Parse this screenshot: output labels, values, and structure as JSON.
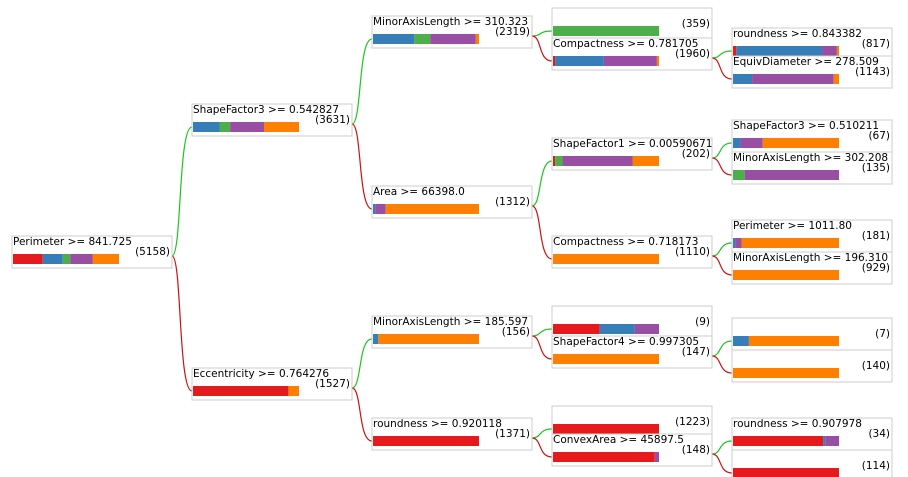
{
  "colors": {
    "red": "#e41a1c",
    "blue": "#377eb8",
    "green": "#4daf4a",
    "purple": "#984ea3",
    "orange": "#ff7f00",
    "edge_true": "#1ec41e",
    "edge_false": "#cc1111"
  },
  "nodes": [
    {
      "id": "n1",
      "label": "Perimeter >= 841.725",
      "count": "(5158)",
      "dist": [
        0.28,
        0.19,
        0.07,
        0.21,
        0.25
      ]
    },
    {
      "id": "n2",
      "label": "ShapeFactor3 >= 0.542827",
      "count": "(3631)",
      "dist": [
        0,
        0.25,
        0.1,
        0.32,
        0.33
      ]
    },
    {
      "id": "n3",
      "label": "Eccentricity >= 0.764276",
      "count": "(1527)",
      "dist": [
        0.9,
        0,
        0,
        0,
        0.1
      ]
    },
    {
      "id": "n4",
      "label": "MinorAxisLength >= 310.323",
      "count": "(2319)",
      "dist": [
        0,
        0.39,
        0.15,
        0.43,
        0.03
      ]
    },
    {
      "id": "n5",
      "label": "Area >= 66398.0",
      "count": "(1312)",
      "dist": [
        0,
        0.02,
        0,
        0.1,
        0.88
      ]
    },
    {
      "id": "n6",
      "label": "MinorAxisLength >= 185.597",
      "count": "(156)",
      "dist": [
        0,
        0.05,
        0,
        0,
        0.95
      ]
    },
    {
      "id": "n7",
      "label": "roundness >= 0.920118",
      "count": "(1371)",
      "dist": [
        1,
        0,
        0,
        0,
        0
      ]
    },
    {
      "id": "n8",
      "label": "",
      "count": "(359)",
      "dist": [
        0,
        0,
        1,
        0,
        0
      ]
    },
    {
      "id": "n9",
      "label": "Compactness >= 0.781705",
      "count": "(1960)",
      "dist": [
        0.02,
        0.46,
        0,
        0.5,
        0.02
      ]
    },
    {
      "id": "n10",
      "label": "ShapeFactor1 >= 0.00590671",
      "count": "(202)",
      "dist": [
        0.02,
        0,
        0.07,
        0.66,
        0.25
      ]
    },
    {
      "id": "n11",
      "label": "Compactness >= 0.718173",
      "count": "(1110)",
      "dist": [
        0,
        0,
        0,
        0,
        1
      ]
    },
    {
      "id": "n12",
      "label": "",
      "count": "(9)",
      "dist": [
        0.44,
        0.33,
        0,
        0.23,
        0
      ]
    },
    {
      "id": "n13",
      "label": "ShapeFactor4 >= 0.997305",
      "count": "(147)",
      "dist": [
        0,
        0,
        0,
        0,
        1
      ]
    },
    {
      "id": "n14",
      "label": "",
      "count": "(1223)",
      "dist": [
        1,
        0,
        0,
        0,
        0
      ]
    },
    {
      "id": "n15",
      "label": "ConvexArea >= 45897.5",
      "count": "(148)",
      "dist": [
        0.96,
        0,
        0,
        0.04,
        0
      ]
    },
    {
      "id": "n16",
      "label": "roundness >= 0.843382",
      "count": "(817)",
      "dist": [
        0.03,
        0.81,
        0,
        0.14,
        0.02
      ]
    },
    {
      "id": "n17",
      "label": "EquivDiameter >= 278.509",
      "count": "(1143)",
      "dist": [
        0,
        0.18,
        0,
        0.77,
        0.05
      ]
    },
    {
      "id": "n18",
      "label": "ShapeFactor3 >= 0.510211",
      "count": "(67)",
      "dist": [
        0,
        0.07,
        0,
        0.21,
        0.72
      ]
    },
    {
      "id": "n19",
      "label": "MinorAxisLength >= 302.208",
      "count": "(135)",
      "dist": [
        0,
        0,
        0.11,
        0.89,
        0
      ]
    },
    {
      "id": "n20",
      "label": "Perimeter >= 1011.80",
      "count": "(181)",
      "dist": [
        0,
        0.02,
        0,
        0.06,
        0.92
      ]
    },
    {
      "id": "n21",
      "label": "MinorAxisLength >= 196.310",
      "count": "(929)",
      "dist": [
        0,
        0,
        0,
        0,
        1
      ]
    },
    {
      "id": "n22",
      "label": "",
      "count": "(7)",
      "dist": [
        0,
        0.15,
        0,
        0,
        0.85
      ]
    },
    {
      "id": "n23",
      "label": "",
      "count": "(140)",
      "dist": [
        0,
        0,
        0,
        0,
        1
      ]
    },
    {
      "id": "n24",
      "label": "roundness >= 0.907978",
      "count": "(34)",
      "dist": [
        0.85,
        0.02,
        0,
        0.13,
        0
      ]
    },
    {
      "id": "n25",
      "label": "",
      "count": "(114)",
      "dist": [
        1,
        0,
        0,
        0,
        0
      ]
    }
  ],
  "edges": [
    {
      "from": "n1",
      "to": "n2",
      "branch": "true"
    },
    {
      "from": "n1",
      "to": "n3",
      "branch": "false"
    },
    {
      "from": "n2",
      "to": "n4",
      "branch": "true"
    },
    {
      "from": "n2",
      "to": "n5",
      "branch": "false"
    },
    {
      "from": "n3",
      "to": "n6",
      "branch": "true"
    },
    {
      "from": "n3",
      "to": "n7",
      "branch": "false"
    },
    {
      "from": "n4",
      "to": "n8",
      "branch": "true"
    },
    {
      "from": "n4",
      "to": "n9",
      "branch": "false"
    },
    {
      "from": "n5",
      "to": "n10",
      "branch": "true"
    },
    {
      "from": "n5",
      "to": "n11",
      "branch": "false"
    },
    {
      "from": "n6",
      "to": "n12",
      "branch": "true"
    },
    {
      "from": "n6",
      "to": "n13",
      "branch": "false"
    },
    {
      "from": "n7",
      "to": "n14",
      "branch": "true"
    },
    {
      "from": "n7",
      "to": "n15",
      "branch": "false"
    },
    {
      "from": "n9",
      "to": "n16",
      "branch": "true"
    },
    {
      "from": "n9",
      "to": "n17",
      "branch": "false"
    },
    {
      "from": "n10",
      "to": "n18",
      "branch": "true"
    },
    {
      "from": "n10",
      "to": "n19",
      "branch": "false"
    },
    {
      "from": "n11",
      "to": "n20",
      "branch": "true"
    },
    {
      "from": "n11",
      "to": "n21",
      "branch": "false"
    },
    {
      "from": "n13",
      "to": "n22",
      "branch": "true"
    },
    {
      "from": "n13",
      "to": "n23",
      "branch": "false"
    },
    {
      "from": "n15",
      "to": "n24",
      "branch": "true"
    },
    {
      "from": "n15",
      "to": "n25",
      "branch": "false"
    }
  ]
}
